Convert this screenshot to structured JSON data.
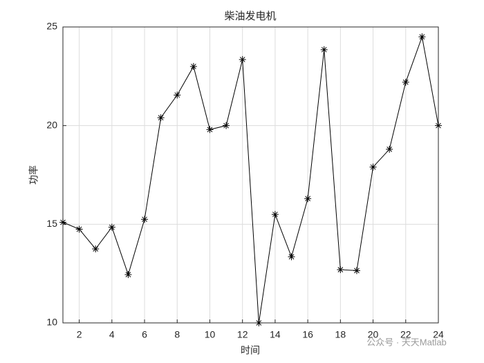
{
  "chart_data": {
    "type": "line",
    "title": "柴油发电机",
    "x_label": "时间",
    "y_label": "功率",
    "x": [
      1,
      2,
      3,
      4,
      5,
      6,
      7,
      8,
      9,
      10,
      11,
      12,
      13,
      14,
      15,
      16,
      17,
      18,
      19,
      20,
      21,
      22,
      23,
      24
    ],
    "series": [
      {
        "name": "功率",
        "color": "#000000",
        "marker": "*",
        "values": [
          15.1,
          14.75,
          13.75,
          14.85,
          12.45,
          15.25,
          20.4,
          21.55,
          23.0,
          19.8,
          20.0,
          23.35,
          10.0,
          15.5,
          13.35,
          16.3,
          23.85,
          12.7,
          12.65,
          17.9,
          18.8,
          22.2,
          24.5,
          20.0
        ]
      }
    ],
    "xlim": [
      1,
      24
    ],
    "xticks": [
      2,
      4,
      6,
      8,
      10,
      12,
      14,
      16,
      18,
      20,
      22,
      24
    ],
    "ylim": [
      10,
      25
    ],
    "yticks": [
      10,
      15,
      20,
      25
    ],
    "grid": true,
    "watermark": "公众号 · 天天Matlab"
  }
}
